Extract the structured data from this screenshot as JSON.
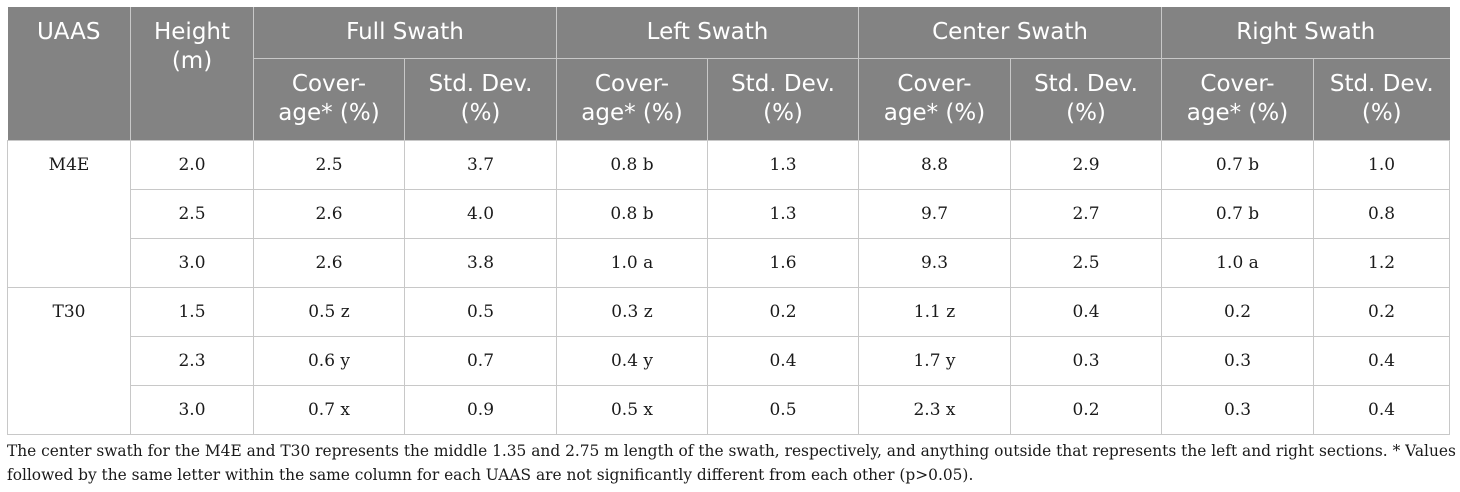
{
  "table": {
    "header_top": {
      "uaas": "UAAS",
      "height": "Height\n(m)",
      "groups": [
        "Full Swath",
        "Left Swath",
        "Center Swath",
        "Right Swath"
      ]
    },
    "header_sub": {
      "coverage": "Cover-\nage* (%)",
      "std": "Std. Dev.\n(%)"
    },
    "rows": [
      {
        "uaas": "M4E",
        "height": "2.0",
        "cells": [
          "2.5",
          "3.7",
          "0.8 b",
          "1.3",
          "8.8",
          "2.9",
          "0.7 b",
          "1.0"
        ]
      },
      {
        "uaas": "",
        "height": "2.5",
        "cells": [
          "2.6",
          "4.0",
          "0.8 b",
          "1.3",
          "9.7",
          "2.7",
          "0.7 b",
          "0.8"
        ]
      },
      {
        "uaas": "",
        "height": "3.0",
        "cells": [
          "2.6",
          "3.8",
          "1.0 a",
          "1.6",
          "9.3",
          "2.5",
          "1.0 a",
          "1.2"
        ]
      },
      {
        "uaas": "T30",
        "height": "1.5",
        "cells": [
          "0.5 z",
          "0.5",
          "0.3 z",
          "0.2",
          "1.1 z",
          "0.4",
          "0.2",
          "0.2"
        ]
      },
      {
        "uaas": "",
        "height": "2.3",
        "cells": [
          "0.6 y",
          "0.7",
          "0.4 y",
          "0.4",
          "1.7 y",
          "0.3",
          "0.3",
          "0.4"
        ]
      },
      {
        "uaas": "",
        "height": "3.0",
        "cells": [
          "0.7 x",
          "0.9",
          "0.5 x",
          "0.5",
          "2.3 x",
          "0.2",
          "0.3",
          "0.4"
        ]
      }
    ]
  },
  "footnote": "The center swath for the M4E and T30 represents the middle 1.35 and 2.75 m length of the swath, respectively, and anything outside that represents the left and right sections. * Values followed by the same letter within the same column for each UAAS are not significantly different from each other (p>0.05)."
}
